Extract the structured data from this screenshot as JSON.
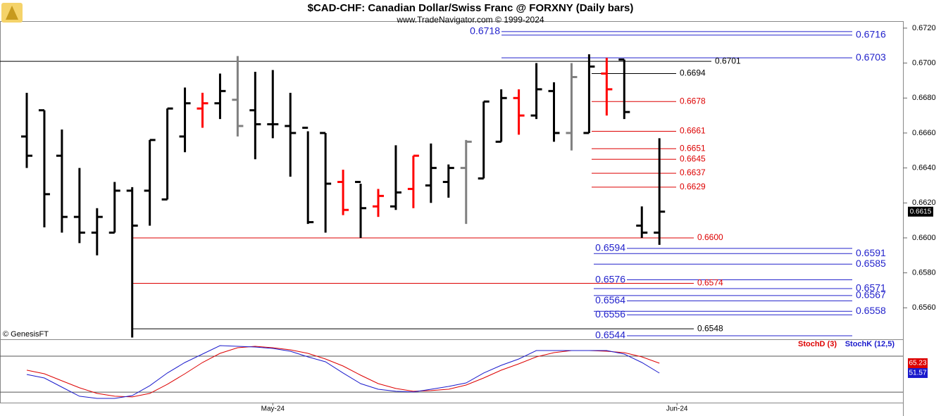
{
  "chart_data": {
    "type": "ohlc",
    "title": "$CAD-CHF:  Canadian Dollar/Swiss Franc @ FORXNY  (Daily bars)",
    "subtitle": "www.TradeNavigator.com © 1999-2024",
    "credit": "© GenesisFT",
    "categories": [
      null,
      null,
      null,
      null,
      null,
      null,
      null,
      null,
      null,
      null,
      null,
      null,
      null,
      null,
      "May-24",
      null,
      null,
      null,
      null,
      null,
      null,
      null,
      null,
      null,
      null,
      null,
      null,
      null,
      null,
      null,
      null,
      null,
      null,
      null,
      null,
      null,
      null,
      "Jun-24"
    ],
    "ohlc": {
      "open": [
        0.6658,
        0.6673,
        0.6647,
        0.6612,
        0.6603,
        0.6603,
        0.6627,
        0.6627,
        0.6622,
        0.6658,
        0.6674,
        0.6677,
        0.6679,
        0.6673,
        0.6665,
        0.6664,
        0.6663,
        0.666,
        0.6632,
        0.6632,
        0.6618,
        0.6618,
        0.6628,
        0.663,
        0.6632,
        0.664,
        0.6634,
        0.6655,
        0.668,
        0.667,
        0.6684,
        0.666,
        0.666,
        0.6694,
        0.6702,
        0.6607,
        0.6603,
        null
      ],
      "high": [
        0.6683,
        0.6673,
        0.6662,
        0.664,
        0.6617,
        0.6632,
        0.6629,
        0.6656,
        0.6674,
        0.6686,
        0.6683,
        0.6694,
        0.6704,
        0.6695,
        0.6696,
        0.6683,
        0.6661,
        0.666,
        0.6639,
        0.6631,
        0.6628,
        0.6653,
        0.6647,
        0.6654,
        0.6642,
        0.6656,
        0.6678,
        0.6685,
        0.6685,
        0.67,
        0.6689,
        0.67,
        0.6705,
        0.6703,
        0.6702,
        0.6618,
        0.6657,
        null
      ],
      "low": [
        0.664,
        0.6606,
        0.6603,
        0.6597,
        0.659,
        0.6603,
        0.6543,
        0.6607,
        0.6622,
        0.6649,
        0.6663,
        0.6668,
        0.6658,
        0.6645,
        0.6657,
        0.6635,
        0.6608,
        0.6603,
        0.6613,
        0.66,
        0.6612,
        0.6616,
        0.6617,
        0.662,
        0.6623,
        0.6608,
        0.6634,
        0.6655,
        0.6659,
        0.6668,
        0.6655,
        0.665,
        0.666,
        0.667,
        0.6668,
        0.66,
        0.6596,
        null
      ],
      "close": [
        0.6647,
        0.6625,
        0.6612,
        0.6603,
        0.6612,
        0.6627,
        0.6607,
        0.6656,
        0.6674,
        0.6677,
        0.6677,
        0.6684,
        0.6664,
        0.6665,
        0.6665,
        0.666,
        0.6609,
        0.6631,
        0.6616,
        0.6617,
        0.6624,
        0.6626,
        0.6647,
        0.664,
        0.664,
        0.6655,
        0.6678,
        0.668,
        0.667,
        0.6685,
        0.666,
        0.6692,
        0.6698,
        0.6685,
        0.6672,
        0.6603,
        0.6615,
        null
      ],
      "colors": [
        "#000000",
        "#000000",
        "#000000",
        "#000000",
        "#000000",
        "#000000",
        "#000000",
        "#000000",
        "#000000",
        "#000000",
        "#ff0000",
        "#000000",
        "#808080",
        "#000000",
        "#000000",
        "#000000",
        "#000000",
        "#000000",
        "#ff0000",
        "#000000",
        "#ff0000",
        "#000000",
        "#ff0000",
        "#000000",
        "#000000",
        "#808080",
        "#000000",
        "#000000",
        "#ff0000",
        "#000000",
        "#000000",
        "#808080",
        "#000000",
        "#ff0000",
        "#000000",
        "#000000",
        "#000000",
        null
      ]
    },
    "ylim": [
      0.6542,
      0.6724
    ],
    "yticks": [
      {
        "value": 0.672,
        "label": "0.6720"
      },
      {
        "value": 0.67,
        "label": "0.6700"
      },
      {
        "value": 0.668,
        "label": "0.6680"
      },
      {
        "value": 0.666,
        "label": "0.6660"
      },
      {
        "value": 0.664,
        "label": "0.6640"
      },
      {
        "value": 0.662,
        "label": "0.6620"
      },
      {
        "value": 0.66,
        "label": "0.6600"
      },
      {
        "value": 0.658,
        "label": "0.6580"
      },
      {
        "value": 0.656,
        "label": "0.6560"
      }
    ],
    "levels": [
      {
        "value": 0.6718,
        "color": "#2323cc"
      },
      {
        "value": 0.6716,
        "color": "#2323cc"
      },
      {
        "value": 0.6703,
        "color": "#2323cc"
      },
      {
        "value": 0.6701,
        "color": "#000000"
      },
      {
        "value": 0.6694,
        "color": "#000000"
      },
      {
        "value": 0.6678,
        "color": "#dd0000"
      },
      {
        "value": 0.6661,
        "color": "#dd0000"
      },
      {
        "value": 0.6651,
        "color": "#dd0000"
      },
      {
        "value": 0.6645,
        "color": "#dd0000"
      },
      {
        "value": 0.6637,
        "color": "#dd0000"
      },
      {
        "value": 0.6629,
        "color": "#dd0000"
      },
      {
        "value": 0.66,
        "label": "0.6600",
        "color": "#dd0000"
      },
      {
        "value": 0.6594,
        "color": "#2323cc"
      },
      {
        "value": 0.6591,
        "color": "#2323cc"
      },
      {
        "value": 0.6585,
        "color": "#2323cc"
      },
      {
        "value": 0.6576,
        "color": "#2323cc"
      },
      {
        "value": 0.6574,
        "color": "#dd0000"
      },
      {
        "value": 0.6571,
        "color": "#2323cc"
      },
      {
        "value": 0.6567,
        "color": "#2323cc"
      },
      {
        "value": 0.6564,
        "color": "#2323cc"
      },
      {
        "value": 0.6558,
        "color": "#2323cc"
      },
      {
        "value": 0.6556,
        "color": "#2323cc"
      },
      {
        "value": 0.6548,
        "color": "#000000"
      },
      {
        "value": 0.6544,
        "color": "#2323cc"
      }
    ],
    "stoch": {
      "ylim": [
        10,
        96
      ],
      "levels": [
        75,
        25
      ],
      "series": [
        {
          "name": "StochD (3)",
          "color": "#dd0000",
          "values": [
            55.5,
            50.6,
            40.8,
            31.1,
            23.3,
            19.4,
            18.4,
            23.3,
            36.0,
            50.6,
            66.2,
            78.9,
            86.7,
            88.7,
            86.7,
            83.8,
            78.9,
            71.1,
            61.3,
            48.6,
            36.9,
            30.1,
            26.2,
            27.2,
            29.1,
            34.9,
            44.7,
            55.5,
            64.3,
            74.0,
            79.9,
            82.8,
            82.8,
            81.8,
            79.9,
            74.0,
            65.23,
            null
          ]
        },
        {
          "name": "StochK (12,5)",
          "color": "#1a1acc",
          "values": [
            49.6,
            44.7,
            32.0,
            19.4,
            16.4,
            16.4,
            20.3,
            34.0,
            51.6,
            66.2,
            77.9,
            89.6,
            88.7,
            87.7,
            85.7,
            81.8,
            74.0,
            67.2,
            51.6,
            36.9,
            29.1,
            26.2,
            25.2,
            29.1,
            33.0,
            37.9,
            51.6,
            62.3,
            71.1,
            82.8,
            82.8,
            82.8,
            82.8,
            82.8,
            77.9,
            66.2,
            51.57,
            null
          ]
        }
      ]
    }
  }
}
